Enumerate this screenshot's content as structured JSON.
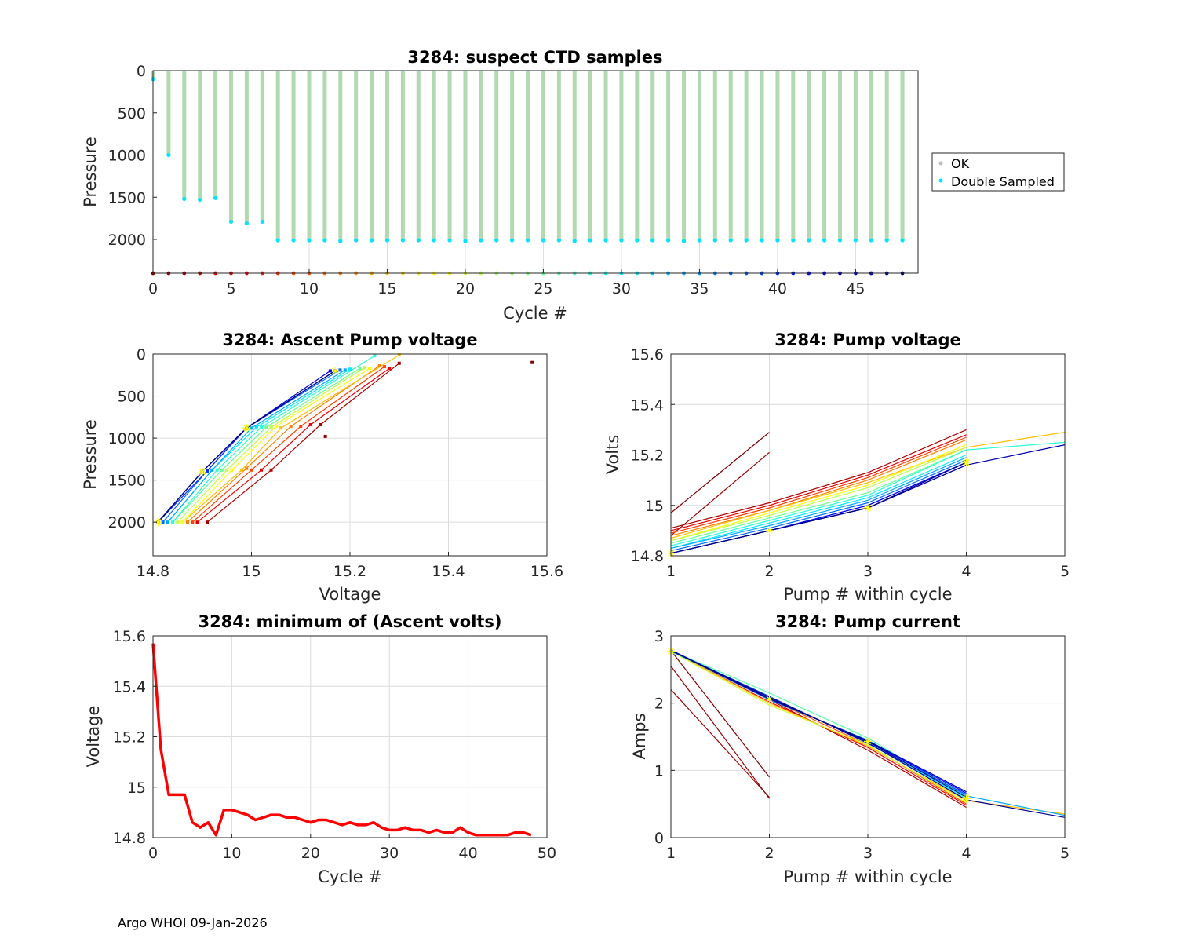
{
  "footer": "Argo WHOI 09-Jan-2026",
  "colors": {
    "ok": "#b3d9b3",
    "ok_legend": "#bfbfbf",
    "double_sampled": "#00e5ff",
    "min_line": "#ff0000",
    "marker": "#ffff00",
    "grid": "#dcdcdc",
    "axis": "#262626"
  },
  "chart_data": [
    {
      "id": "ctd",
      "type": "scatter",
      "title": "3284: suspect CTD samples",
      "xlabel": "Cycle #",
      "ylabel": "Pressure",
      "xlim": [
        0,
        49
      ],
      "ylim": [
        2400,
        0
      ],
      "xticks": [
        "0",
        "5",
        "10",
        "15",
        "20",
        "25",
        "30",
        "35",
        "40",
        "45"
      ],
      "yticks": [
        "0",
        "500",
        "1000",
        "1500",
        "2000"
      ],
      "legend": {
        "position": "outside-right",
        "entries": [
          "OK",
          "Double Sampled"
        ]
      },
      "cycles": [
        0,
        1,
        2,
        3,
        4,
        5,
        6,
        7,
        8,
        9,
        10,
        11,
        12,
        13,
        14,
        15,
        16,
        17,
        18,
        19,
        20,
        21,
        22,
        23,
        24,
        25,
        26,
        27,
        28,
        29,
        30,
        31,
        32,
        33,
        34,
        35,
        36,
        37,
        38,
        39,
        40,
        41,
        42,
        43,
        44,
        45,
        46,
        47,
        48
      ],
      "max_pressure": [
        100,
        1000,
        1520,
        1530,
        1510,
        1790,
        1810,
        1790,
        2010,
        2010,
        2010,
        2010,
        2020,
        2010,
        2010,
        2010,
        2010,
        2010,
        2010,
        2010,
        2020,
        2010,
        2010,
        2010,
        2010,
        2010,
        2010,
        2020,
        2010,
        2010,
        2010,
        2010,
        2010,
        2010,
        2020,
        2010,
        2010,
        2010,
        2010,
        2010,
        2010,
        2010,
        2010,
        2010,
        2010,
        2010,
        2010,
        2010,
        2010
      ],
      "double_sampled_pressure": [
        100,
        1000,
        1520,
        1530,
        1510,
        1790,
        1810,
        1790,
        2010,
        2010,
        2010,
        2010,
        2020,
        2010,
        2010,
        2010,
        2010,
        2010,
        2010,
        2010,
        2020,
        2010,
        2010,
        2010,
        2010,
        2010,
        2010,
        2020,
        2010,
        2010,
        2010,
        2010,
        2010,
        2010,
        2020,
        2010,
        2010,
        2010,
        2010,
        2010,
        2010,
        2010,
        2010,
        2010,
        2010,
        2010,
        2010,
        2010,
        2010
      ],
      "baseline_pressure": 2400
    },
    {
      "id": "apv",
      "type": "line",
      "title": "3284: Ascent Pump voltage",
      "xlabel": "Voltage",
      "ylabel": "Pressure",
      "xlim": [
        14.8,
        15.6
      ],
      "ylim": [
        2400,
        0
      ],
      "xticks": [
        "14.8",
        "15",
        "15.2",
        "15.4",
        "15.6"
      ],
      "yticks": [
        "0",
        "500",
        "1000",
        "1500",
        "2000"
      ],
      "pressures": [
        2000,
        1400,
        880,
        200
      ],
      "profiles": [
        {
          "cycle": 0,
          "points": [
            [
              15.57,
              100
            ]
          ]
        },
        {
          "cycle": 1,
          "points": [
            [
              15.15,
              980
            ]
          ]
        },
        {
          "cycle": 2,
          "points": [
            [
              14.91,
              2000
            ],
            [
              15.04,
              1380
            ],
            [
              15.14,
              840
            ],
            [
              15.3,
              110
            ]
          ]
        },
        {
          "cycle": 5,
          "points": [
            [
              14.89,
              2000
            ],
            [
              15.02,
              1380
            ],
            [
              15.12,
              840
            ],
            [
              15.28,
              170
            ]
          ]
        },
        {
          "cycle": 9,
          "points": [
            [
              14.88,
              2000
            ],
            [
              15.0,
              1380
            ],
            [
              15.1,
              860
            ],
            [
              15.27,
              150
            ]
          ]
        },
        {
          "cycle": 12,
          "points": [
            [
              14.87,
              2000
            ],
            [
              14.99,
              1360
            ],
            [
              15.08,
              860
            ],
            [
              15.26,
              140
            ]
          ]
        },
        {
          "cycle": 15,
          "points": [
            [
              14.86,
              2000
            ],
            [
              14.98,
              1380
            ],
            [
              15.06,
              880
            ],
            [
              15.3,
              10
            ]
          ]
        },
        {
          "cycle": 18,
          "points": [
            [
              14.86,
              2000
            ],
            [
              14.96,
              1380
            ],
            [
              15.05,
              860
            ],
            [
              15.24,
              170
            ]
          ]
        },
        {
          "cycle": 21,
          "points": [
            [
              14.85,
              2000
            ],
            [
              14.95,
              1380
            ],
            [
              15.04,
              870
            ],
            [
              15.23,
              160
            ]
          ]
        },
        {
          "cycle": 25,
          "points": [
            [
              14.84,
              2000
            ],
            [
              14.94,
              1380
            ],
            [
              15.03,
              870
            ],
            [
              15.22,
              170
            ]
          ]
        },
        {
          "cycle": 28,
          "points": [
            [
              14.84,
              2000
            ],
            [
              14.93,
              1380
            ],
            [
              15.02,
              870
            ],
            [
              15.25,
              20
            ]
          ]
        },
        {
          "cycle": 31,
          "points": [
            [
              14.83,
              2000
            ],
            [
              14.92,
              1380
            ],
            [
              15.01,
              870
            ],
            [
              15.2,
              180
            ]
          ]
        },
        {
          "cycle": 34,
          "points": [
            [
              14.83,
              2000
            ],
            [
              14.92,
              1380
            ],
            [
              15.0,
              880
            ],
            [
              15.19,
              190
            ]
          ]
        },
        {
          "cycle": 37,
          "points": [
            [
              14.82,
              2000
            ],
            [
              14.91,
              1390
            ],
            [
              14.99,
              880
            ],
            [
              15.18,
              190
            ]
          ]
        },
        {
          "cycle": 40,
          "points": [
            [
              14.81,
              2000
            ],
            [
              14.91,
              1390
            ],
            [
              14.99,
              880
            ],
            [
              15.17,
              200
            ]
          ]
        },
        {
          "cycle": 42,
          "points": [
            [
              14.81,
              2000
            ],
            [
              14.9,
              1400
            ],
            [
              14.99,
              880
            ],
            [
              15.17,
              200
            ]
          ]
        },
        {
          "cycle": 44,
          "points": [
            [
              14.81,
              2000
            ],
            [
              14.9,
              1400
            ],
            [
              14.99,
              880
            ],
            [
              15.16,
              200
            ]
          ]
        },
        {
          "cycle": 46,
          "points": [
            [
              14.81,
              2000
            ],
            [
              14.9,
              1400
            ],
            [
              14.99,
              880
            ],
            [
              15.17,
              200
            ]
          ]
        },
        {
          "cycle": 48,
          "points": [
            [
              14.81,
              2000
            ],
            [
              14.9,
              1400
            ],
            [
              14.99,
              880
            ],
            [
              15.17,
              200
            ]
          ]
        }
      ],
      "markers": [
        [
          14.81,
          2000
        ],
        [
          14.9,
          1400
        ],
        [
          14.99,
          880
        ],
        [
          15.17,
          200
        ]
      ]
    },
    {
      "id": "pv",
      "type": "line",
      "title": "3284: Pump voltage",
      "xlabel": "Pump # within cycle",
      "ylabel": "Volts",
      "xlim": [
        1,
        5
      ],
      "ylim": [
        14.8,
        15.6
      ],
      "xticks": [
        "1",
        "2",
        "3",
        "4",
        "5"
      ],
      "yticks": [
        "14.8",
        "15",
        "15.2",
        "15.4",
        "15.6"
      ],
      "profiles": [
        {
          "cycle": 0,
          "values": [
            14.97,
            15.29
          ]
        },
        {
          "cycle": 1,
          "values": [
            14.88,
            15.21
          ]
        },
        {
          "cycle": 2,
          "values": [
            14.91,
            15.01,
            15.13,
            15.3
          ]
        },
        {
          "cycle": 5,
          "values": [
            14.9,
            15.0,
            15.12,
            15.28
          ]
        },
        {
          "cycle": 9,
          "values": [
            14.89,
            14.99,
            15.11,
            15.27
          ]
        },
        {
          "cycle": 12,
          "values": [
            14.88,
            14.98,
            15.1,
            15.26
          ]
        },
        {
          "cycle": 15,
          "values": [
            14.87,
            14.98,
            15.09,
            15.23,
            15.29
          ]
        },
        {
          "cycle": 18,
          "values": [
            14.86,
            14.97,
            15.08,
            15.24
          ]
        },
        {
          "cycle": 21,
          "values": [
            14.86,
            14.96,
            15.07,
            15.23
          ]
        },
        {
          "cycle": 25,
          "values": [
            14.85,
            14.95,
            15.05,
            15.22
          ]
        },
        {
          "cycle": 28,
          "values": [
            14.84,
            14.94,
            15.04,
            15.22,
            15.25
          ]
        },
        {
          "cycle": 31,
          "values": [
            14.83,
            14.93,
            15.03,
            15.2
          ]
        },
        {
          "cycle": 34,
          "values": [
            14.83,
            14.92,
            15.02,
            15.19
          ]
        },
        {
          "cycle": 37,
          "values": [
            14.82,
            14.91,
            15.01,
            15.18
          ]
        },
        {
          "cycle": 40,
          "values": [
            14.81,
            14.9,
            15.0,
            15.17
          ]
        },
        {
          "cycle": 42,
          "values": [
            14.81,
            14.9,
            15.0,
            15.17
          ]
        },
        {
          "cycle": 44,
          "values": [
            14.81,
            14.9,
            14.99,
            15.16
          ]
        },
        {
          "cycle": 46,
          "values": [
            14.81,
            14.9,
            14.99,
            15.16,
            15.24
          ]
        },
        {
          "cycle": 48,
          "values": [
            14.81,
            14.9,
            14.99,
            15.17
          ]
        }
      ],
      "markers": [
        14.81,
        14.9,
        14.99,
        15.17
      ]
    },
    {
      "id": "minv",
      "type": "line",
      "title": "3284: minimum of (Ascent volts)",
      "xlabel": "Cycle #",
      "ylabel": "Voltage",
      "xlim": [
        0,
        50
      ],
      "ylim": [
        14.8,
        15.6
      ],
      "xticks": [
        "0",
        "10",
        "20",
        "30",
        "40",
        "50"
      ],
      "yticks": [
        "14.8",
        "15",
        "15.2",
        "15.4",
        "15.6"
      ],
      "x": [
        0,
        1,
        2,
        3,
        4,
        5,
        6,
        7,
        8,
        9,
        10,
        11,
        12,
        13,
        14,
        15,
        16,
        17,
        18,
        19,
        20,
        21,
        22,
        23,
        24,
        25,
        26,
        27,
        28,
        29,
        30,
        31,
        32,
        33,
        34,
        35,
        36,
        37,
        38,
        39,
        40,
        41,
        42,
        43,
        44,
        45,
        46,
        47,
        48
      ],
      "y": [
        15.57,
        15.15,
        14.97,
        14.97,
        14.97,
        14.86,
        14.84,
        14.86,
        14.81,
        14.91,
        14.91,
        14.9,
        14.89,
        14.87,
        14.88,
        14.89,
        14.89,
        14.88,
        14.88,
        14.87,
        14.86,
        14.87,
        14.87,
        14.86,
        14.85,
        14.86,
        14.85,
        14.85,
        14.86,
        14.84,
        14.83,
        14.83,
        14.84,
        14.83,
        14.83,
        14.82,
        14.83,
        14.82,
        14.82,
        14.84,
        14.82,
        14.81,
        14.81,
        14.81,
        14.81,
        14.81,
        14.82,
        14.82,
        14.81
      ]
    },
    {
      "id": "pc",
      "type": "line",
      "title": "3284: Pump current",
      "xlabel": "Pump # within cycle",
      "ylabel": "Amps",
      "xlim": [
        1,
        5
      ],
      "ylim": [
        0,
        3
      ],
      "xticks": [
        "1",
        "2",
        "3",
        "4",
        "5"
      ],
      "yticks": [
        "0",
        "1",
        "2",
        "3"
      ],
      "profiles": [
        {
          "cycle": 0,
          "values": [
            2.78,
            0.9
          ]
        },
        {
          "cycle": 1,
          "values": [
            2.55,
            0.58
          ]
        },
        {
          "cycle": 1,
          "values": [
            2.2,
            0.6
          ]
        },
        {
          "cycle": 2,
          "values": [
            2.78,
            2.05,
            1.3,
            0.45
          ]
        },
        {
          "cycle": 6,
          "values": [
            2.77,
            2.02,
            1.34,
            0.48
          ]
        },
        {
          "cycle": 10,
          "values": [
            2.78,
            2.06,
            1.38,
            0.5
          ]
        },
        {
          "cycle": 15,
          "values": [
            2.78,
            2.0,
            1.36,
            0.55,
            0.35
          ]
        },
        {
          "cycle": 20,
          "values": [
            2.77,
            1.97,
            1.38,
            0.52
          ]
        },
        {
          "cycle": 26,
          "values": [
            2.78,
            2.15,
            1.48,
            0.6
          ]
        },
        {
          "cycle": 30,
          "values": [
            2.77,
            2.08,
            1.42,
            0.58
          ]
        },
        {
          "cycle": 34,
          "values": [
            2.78,
            2.05,
            1.45,
            0.62,
            0.33
          ]
        },
        {
          "cycle": 38,
          "values": [
            2.78,
            2.1,
            1.4,
            0.64
          ]
        },
        {
          "cycle": 42,
          "values": [
            2.79,
            2.07,
            1.43,
            0.66
          ]
        },
        {
          "cycle": 45,
          "values": [
            2.78,
            2.06,
            1.44,
            0.68
          ]
        },
        {
          "cycle": 47,
          "values": [
            2.78,
            2.09,
            1.41,
            0.56,
            0.3
          ]
        },
        {
          "cycle": 48,
          "values": [
            2.78,
            2.07,
            1.43,
            0.6
          ]
        }
      ],
      "markers": [
        2.77,
        2.06,
        1.43,
        0.58
      ]
    }
  ]
}
